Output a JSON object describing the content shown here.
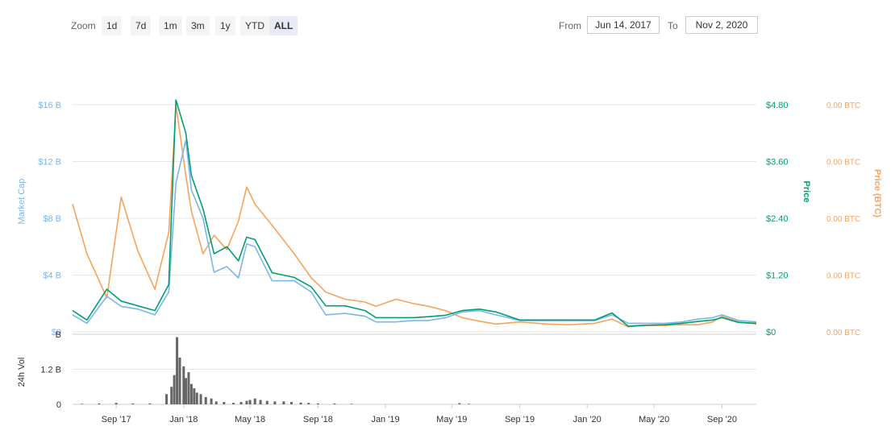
{
  "toolbar": {
    "zoom_label": "Zoom",
    "buttons": [
      "1d",
      "7d",
      "1m",
      "3m",
      "1y",
      "YTD",
      "ALL"
    ],
    "active": "ALL",
    "from_label": "From",
    "from_value": "Jun 14, 2017",
    "to_label": "To",
    "to_value": "Nov 2, 2020"
  },
  "colors": {
    "market_cap": "#7cb5ec",
    "price_usd": "#009e73",
    "price_btc": "#f7a35c",
    "volume": "#666666",
    "grid": "#e6e6e6"
  },
  "chart_data": [
    {
      "type": "line",
      "title": "",
      "x_tick_labels": [
        "Sep '17",
        "Jan '18",
        "May '18",
        "Sep '18",
        "Jan '19",
        "May '19",
        "Sep '19",
        "Jan '20",
        "May '20",
        "Sep '20"
      ],
      "x_ticks": [
        "2017-09-01",
        "2018-01-01",
        "2018-05-01",
        "2018-09-01",
        "2019-01-01",
        "2019-05-01",
        "2019-09-01",
        "2020-01-01",
        "2020-05-01",
        "2020-09-01"
      ],
      "x_range": [
        "2017-06-14",
        "2020-11-02"
      ],
      "grid": true,
      "axes": {
        "left": {
          "label": "Market Cap",
          "ticks": [
            "$0",
            "$4 B",
            "$8 B",
            "$12 B",
            "$16 B"
          ],
          "ylim": [
            0,
            16
          ]
        },
        "right_price": {
          "label": "Price",
          "ticks": [
            "$0",
            "$1.20",
            "$2.40",
            "$3.60",
            "$4.80"
          ],
          "ylim": [
            0,
            4.8
          ]
        },
        "right_btc": {
          "label": "Price (BTC)",
          "ticks": [
            "0.00 BTC",
            "0.00 BTC",
            "0.00 BTC",
            "0.00 BTC",
            "0.00 BTC"
          ]
        }
      },
      "series": [
        {
          "name": "Market Cap",
          "axis": "left",
          "x": [
            "2017-06-14",
            "2017-07-10",
            "2017-08-15",
            "2017-09-10",
            "2017-10-10",
            "2017-11-10",
            "2017-12-05",
            "2017-12-18",
            "2018-01-05",
            "2018-01-15",
            "2018-02-05",
            "2018-02-25",
            "2018-03-20",
            "2018-04-10",
            "2018-04-25",
            "2018-05-10",
            "2018-06-10",
            "2018-07-20",
            "2018-08-20",
            "2018-09-15",
            "2018-10-20",
            "2018-11-25",
            "2018-12-15",
            "2019-01-20",
            "2019-02-20",
            "2019-03-20",
            "2019-04-20",
            "2019-05-20",
            "2019-06-20",
            "2019-07-20",
            "2019-09-01",
            "2019-10-20",
            "2019-12-01",
            "2020-01-15",
            "2020-02-15",
            "2020-03-15",
            "2020-04-15",
            "2020-05-20",
            "2020-06-20",
            "2020-07-20",
            "2020-08-15",
            "2020-09-01",
            "2020-10-01",
            "2020-11-02"
          ],
          "values": [
            1.2,
            0.6,
            2.5,
            1.8,
            1.6,
            1.2,
            2.8,
            10.5,
            13.5,
            10.0,
            8.0,
            4.2,
            4.6,
            3.8,
            6.2,
            6.0,
            3.6,
            3.6,
            2.8,
            1.2,
            1.3,
            1.1,
            0.7,
            0.7,
            0.8,
            0.8,
            1.0,
            1.4,
            1.5,
            1.2,
            0.8,
            0.8,
            0.8,
            0.8,
            1.2,
            0.6,
            0.6,
            0.6,
            0.7,
            0.9,
            1.0,
            1.2,
            0.8,
            0.7
          ]
        },
        {
          "name": "Price",
          "axis": "right_price",
          "x": [
            "2017-06-14",
            "2017-07-10",
            "2017-08-15",
            "2017-09-10",
            "2017-10-10",
            "2017-11-10",
            "2017-12-05",
            "2017-12-18",
            "2018-01-05",
            "2018-01-15",
            "2018-02-05",
            "2018-02-25",
            "2018-03-20",
            "2018-04-10",
            "2018-04-25",
            "2018-05-10",
            "2018-06-10",
            "2018-07-20",
            "2018-08-20",
            "2018-09-15",
            "2018-10-20",
            "2018-11-25",
            "2018-12-15",
            "2019-01-20",
            "2019-02-20",
            "2019-03-20",
            "2019-04-20",
            "2019-05-20",
            "2019-06-20",
            "2019-07-20",
            "2019-09-01",
            "2019-10-20",
            "2019-12-01",
            "2020-01-15",
            "2020-02-15",
            "2020-03-15",
            "2020-04-15",
            "2020-05-20",
            "2020-06-20",
            "2020-07-20",
            "2020-08-15",
            "2020-09-01",
            "2020-10-01",
            "2020-11-02"
          ],
          "values": [
            0.45,
            0.25,
            0.9,
            0.65,
            0.55,
            0.45,
            1.0,
            4.9,
            4.2,
            3.3,
            2.6,
            1.65,
            1.8,
            1.5,
            2.0,
            1.95,
            1.25,
            1.15,
            0.95,
            0.55,
            0.55,
            0.45,
            0.3,
            0.3,
            0.3,
            0.32,
            0.35,
            0.45,
            0.48,
            0.42,
            0.25,
            0.25,
            0.25,
            0.25,
            0.4,
            0.12,
            0.14,
            0.15,
            0.18,
            0.22,
            0.25,
            0.3,
            0.2,
            0.18
          ]
        },
        {
          "name": "Price (BTC)",
          "axis": "right_btc",
          "x": [
            "2017-06-14",
            "2017-07-10",
            "2017-08-15",
            "2017-09-10",
            "2017-10-10",
            "2017-11-10",
            "2017-12-05",
            "2017-12-18",
            "2018-01-05",
            "2018-01-15",
            "2018-02-05",
            "2018-02-25",
            "2018-03-20",
            "2018-04-10",
            "2018-04-25",
            "2018-05-10",
            "2018-06-10",
            "2018-07-20",
            "2018-08-20",
            "2018-09-15",
            "2018-10-20",
            "2018-11-25",
            "2018-12-15",
            "2019-01-20",
            "2019-02-20",
            "2019-03-20",
            "2019-04-20",
            "2019-05-20",
            "2019-06-20",
            "2019-07-20",
            "2019-09-01",
            "2019-10-20",
            "2019-12-01",
            "2020-01-15",
            "2020-02-15",
            "2020-03-15",
            "2020-04-15",
            "2020-05-20",
            "2020-06-20",
            "2020-07-20",
            "2020-08-15",
            "2020-09-01",
            "2020-10-01",
            "2020-11-02"
          ],
          "values": [
            9.0,
            5.5,
            2.4,
            9.5,
            5.7,
            3.0,
            7.0,
            16.0,
            11.0,
            8.5,
            5.5,
            6.8,
            5.8,
            7.8,
            10.2,
            9.0,
            7.5,
            5.5,
            3.8,
            2.8,
            2.3,
            2.1,
            1.8,
            2.3,
            2.0,
            1.8,
            1.5,
            1.0,
            0.75,
            0.55,
            0.7,
            0.55,
            0.5,
            0.6,
            0.9,
            0.35,
            0.45,
            0.45,
            0.5,
            0.5,
            0.7,
            1.1,
            0.7,
            0.55
          ]
        }
      ]
    },
    {
      "type": "bar",
      "title": "",
      "axes": {
        "left": {
          "label": "24h Vol",
          "ticks": [
            "0",
            "1.2 B",
            "B"
          ],
          "ylim": [
            0,
            2.4
          ]
        }
      },
      "series": [
        {
          "name": "24h Vol",
          "x": [
            "2017-07-01",
            "2017-08-01",
            "2017-09-01",
            "2017-10-01",
            "2017-11-01",
            "2017-12-01",
            "2017-12-10",
            "2017-12-15",
            "2017-12-20",
            "2017-12-25",
            "2018-01-01",
            "2018-01-05",
            "2018-01-10",
            "2018-01-15",
            "2018-01-20",
            "2018-01-25",
            "2018-02-01",
            "2018-02-10",
            "2018-02-20",
            "2018-03-01",
            "2018-03-15",
            "2018-04-01",
            "2018-04-15",
            "2018-04-25",
            "2018-05-01",
            "2018-05-10",
            "2018-05-20",
            "2018-06-01",
            "2018-06-15",
            "2018-07-01",
            "2018-07-15",
            "2018-08-01",
            "2018-08-15",
            "2018-09-01",
            "2018-10-01",
            "2018-11-01",
            "2019-05-15",
            "2019-06-01"
          ],
          "values": [
            0.02,
            0.03,
            0.05,
            0.03,
            0.03,
            0.35,
            0.6,
            1.0,
            2.3,
            1.6,
            1.3,
            0.9,
            1.1,
            0.7,
            0.55,
            0.4,
            0.35,
            0.25,
            0.2,
            0.1,
            0.08,
            0.05,
            0.08,
            0.12,
            0.15,
            0.2,
            0.15,
            0.12,
            0.1,
            0.1,
            0.08,
            0.06,
            0.05,
            0.03,
            0.03,
            0.02,
            0.04,
            0.02
          ]
        }
      ]
    }
  ]
}
